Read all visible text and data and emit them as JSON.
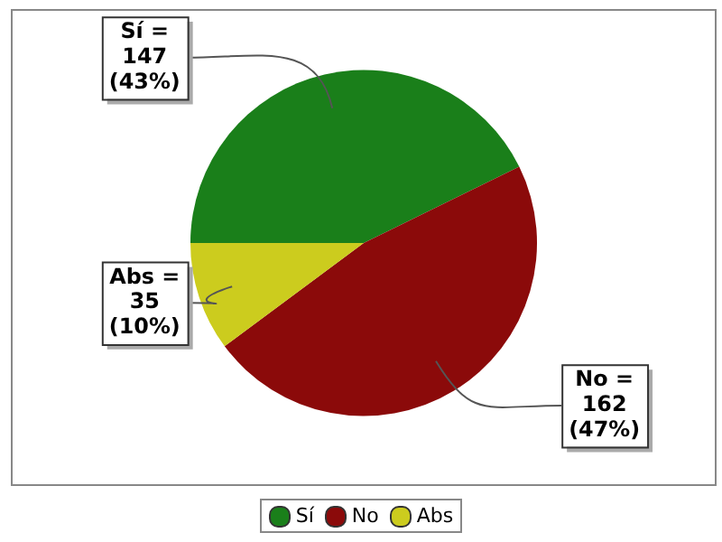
{
  "chart_data": {
    "type": "pie",
    "categories": [
      "Sí",
      "No",
      "Abs"
    ],
    "values": [
      147,
      162,
      35
    ],
    "colors": [
      "#1a7f1a",
      "#8b0a0a",
      "#cccc1e"
    ],
    "value_labels": [
      "=\n147\n(43%)",
      "=\n162\n(47%)",
      "=\n35\n(10%)"
    ],
    "legend": "bottom"
  }
}
